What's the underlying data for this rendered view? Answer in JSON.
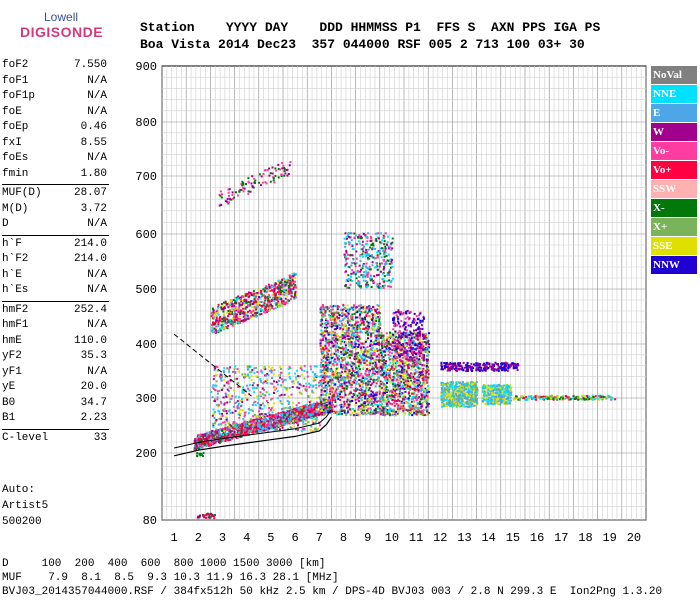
{
  "logo": {
    "line1": "Lowell",
    "line2": "DIGISONDE"
  },
  "header": {
    "line1": "Station    YYYY DAY    DDD HHMMSS P1  FFS S  AXN PPS IGA PS",
    "line2": "Boa Vista 2014 Dec23  357 044000 RSF 005 2 713 100 03+ 30"
  },
  "params": {
    "group1": [
      {
        "name": "foF2",
        "value": "7.550"
      },
      {
        "name": "foF1",
        "value": "N/A"
      },
      {
        "name": "foF1p",
        "value": "N/A"
      },
      {
        "name": "foE",
        "value": "N/A"
      },
      {
        "name": "foEp",
        "value": "0.46"
      },
      {
        "name": "fxI",
        "value": "8.55"
      },
      {
        "name": "foEs",
        "value": "N/A"
      },
      {
        "name": "fmin",
        "value": "1.80"
      }
    ],
    "group2": [
      {
        "name": "MUF(D)",
        "value": "28.07"
      },
      {
        "name": "M(D)",
        "value": "3.72"
      },
      {
        "name": "D",
        "value": "N/A"
      }
    ],
    "group3": [
      {
        "name": "h`F",
        "value": "214.0"
      },
      {
        "name": "h`F2",
        "value": "214.0"
      },
      {
        "name": "h`E",
        "value": "N/A"
      },
      {
        "name": "h`Es",
        "value": "N/A"
      }
    ],
    "group4": [
      {
        "name": "hmF2",
        "value": "252.4"
      },
      {
        "name": "hmF1",
        "value": "N/A"
      },
      {
        "name": "hmE",
        "value": "110.0"
      },
      {
        "name": "yF2",
        "value": "35.3"
      },
      {
        "name": "yF1",
        "value": "N/A"
      },
      {
        "name": "yE",
        "value": "20.0"
      },
      {
        "name": "B0",
        "value": "34.7"
      },
      {
        "name": "B1",
        "value": "2.23"
      }
    ],
    "group5": [
      {
        "name": "C-level",
        "value": "33"
      }
    ]
  },
  "auto": {
    "line1": "Auto:",
    "line2": "Artist5",
    "line3": "500200"
  },
  "legend": [
    {
      "label": "NoVal",
      "color": "#808080"
    },
    {
      "label": "NNE",
      "color": "#00e0ff"
    },
    {
      "label": "E",
      "color": "#4da6e8"
    },
    {
      "label": "W",
      "color": "#a0008c"
    },
    {
      "label": "Vo-",
      "color": "#ff3ca0"
    },
    {
      "label": "Vo+",
      "color": "#ff0040"
    },
    {
      "label": "SSW",
      "color": "#ffb0b0"
    },
    {
      "label": "X-",
      "color": "#00780a"
    },
    {
      "label": "X+",
      "color": "#7ab45a"
    },
    {
      "label": "SSE",
      "color": "#e0e000"
    },
    {
      "label": "NNW",
      "color": "#1e00d2"
    }
  ],
  "footer": {
    "line1": "D     100  200  400  600  800 1000 1500 3000 [km]",
    "line2": "MUF    7.9  8.1  8.5  9.3 10.3 11.9 16.3 28.1 [MHz]",
    "line3": "BVJ03_2014357044000.RSF / 384fx512h 50 kHz 2.5 km / DPS-4D BVJ03 003 / 2.8 N 299.3 E  Ion2Png 1.3.20"
  },
  "chart_data": {
    "type": "scatter",
    "x_ticks": [
      "1",
      "2",
      "3",
      "4",
      "5",
      "6",
      "7",
      "8",
      "9",
      "10",
      "11",
      "12",
      "13",
      "14",
      "15",
      "16",
      "17",
      "18",
      "19",
      "20"
    ],
    "y_ticks": [
      "80",
      "200",
      "300",
      "400",
      "500",
      "600",
      "700",
      "800",
      "900"
    ],
    "xlim": [
      1,
      20
    ],
    "y_scale": "nonlinear (80 at bottom, 200 through 900 evenly spaced)",
    "grid": true
  }
}
